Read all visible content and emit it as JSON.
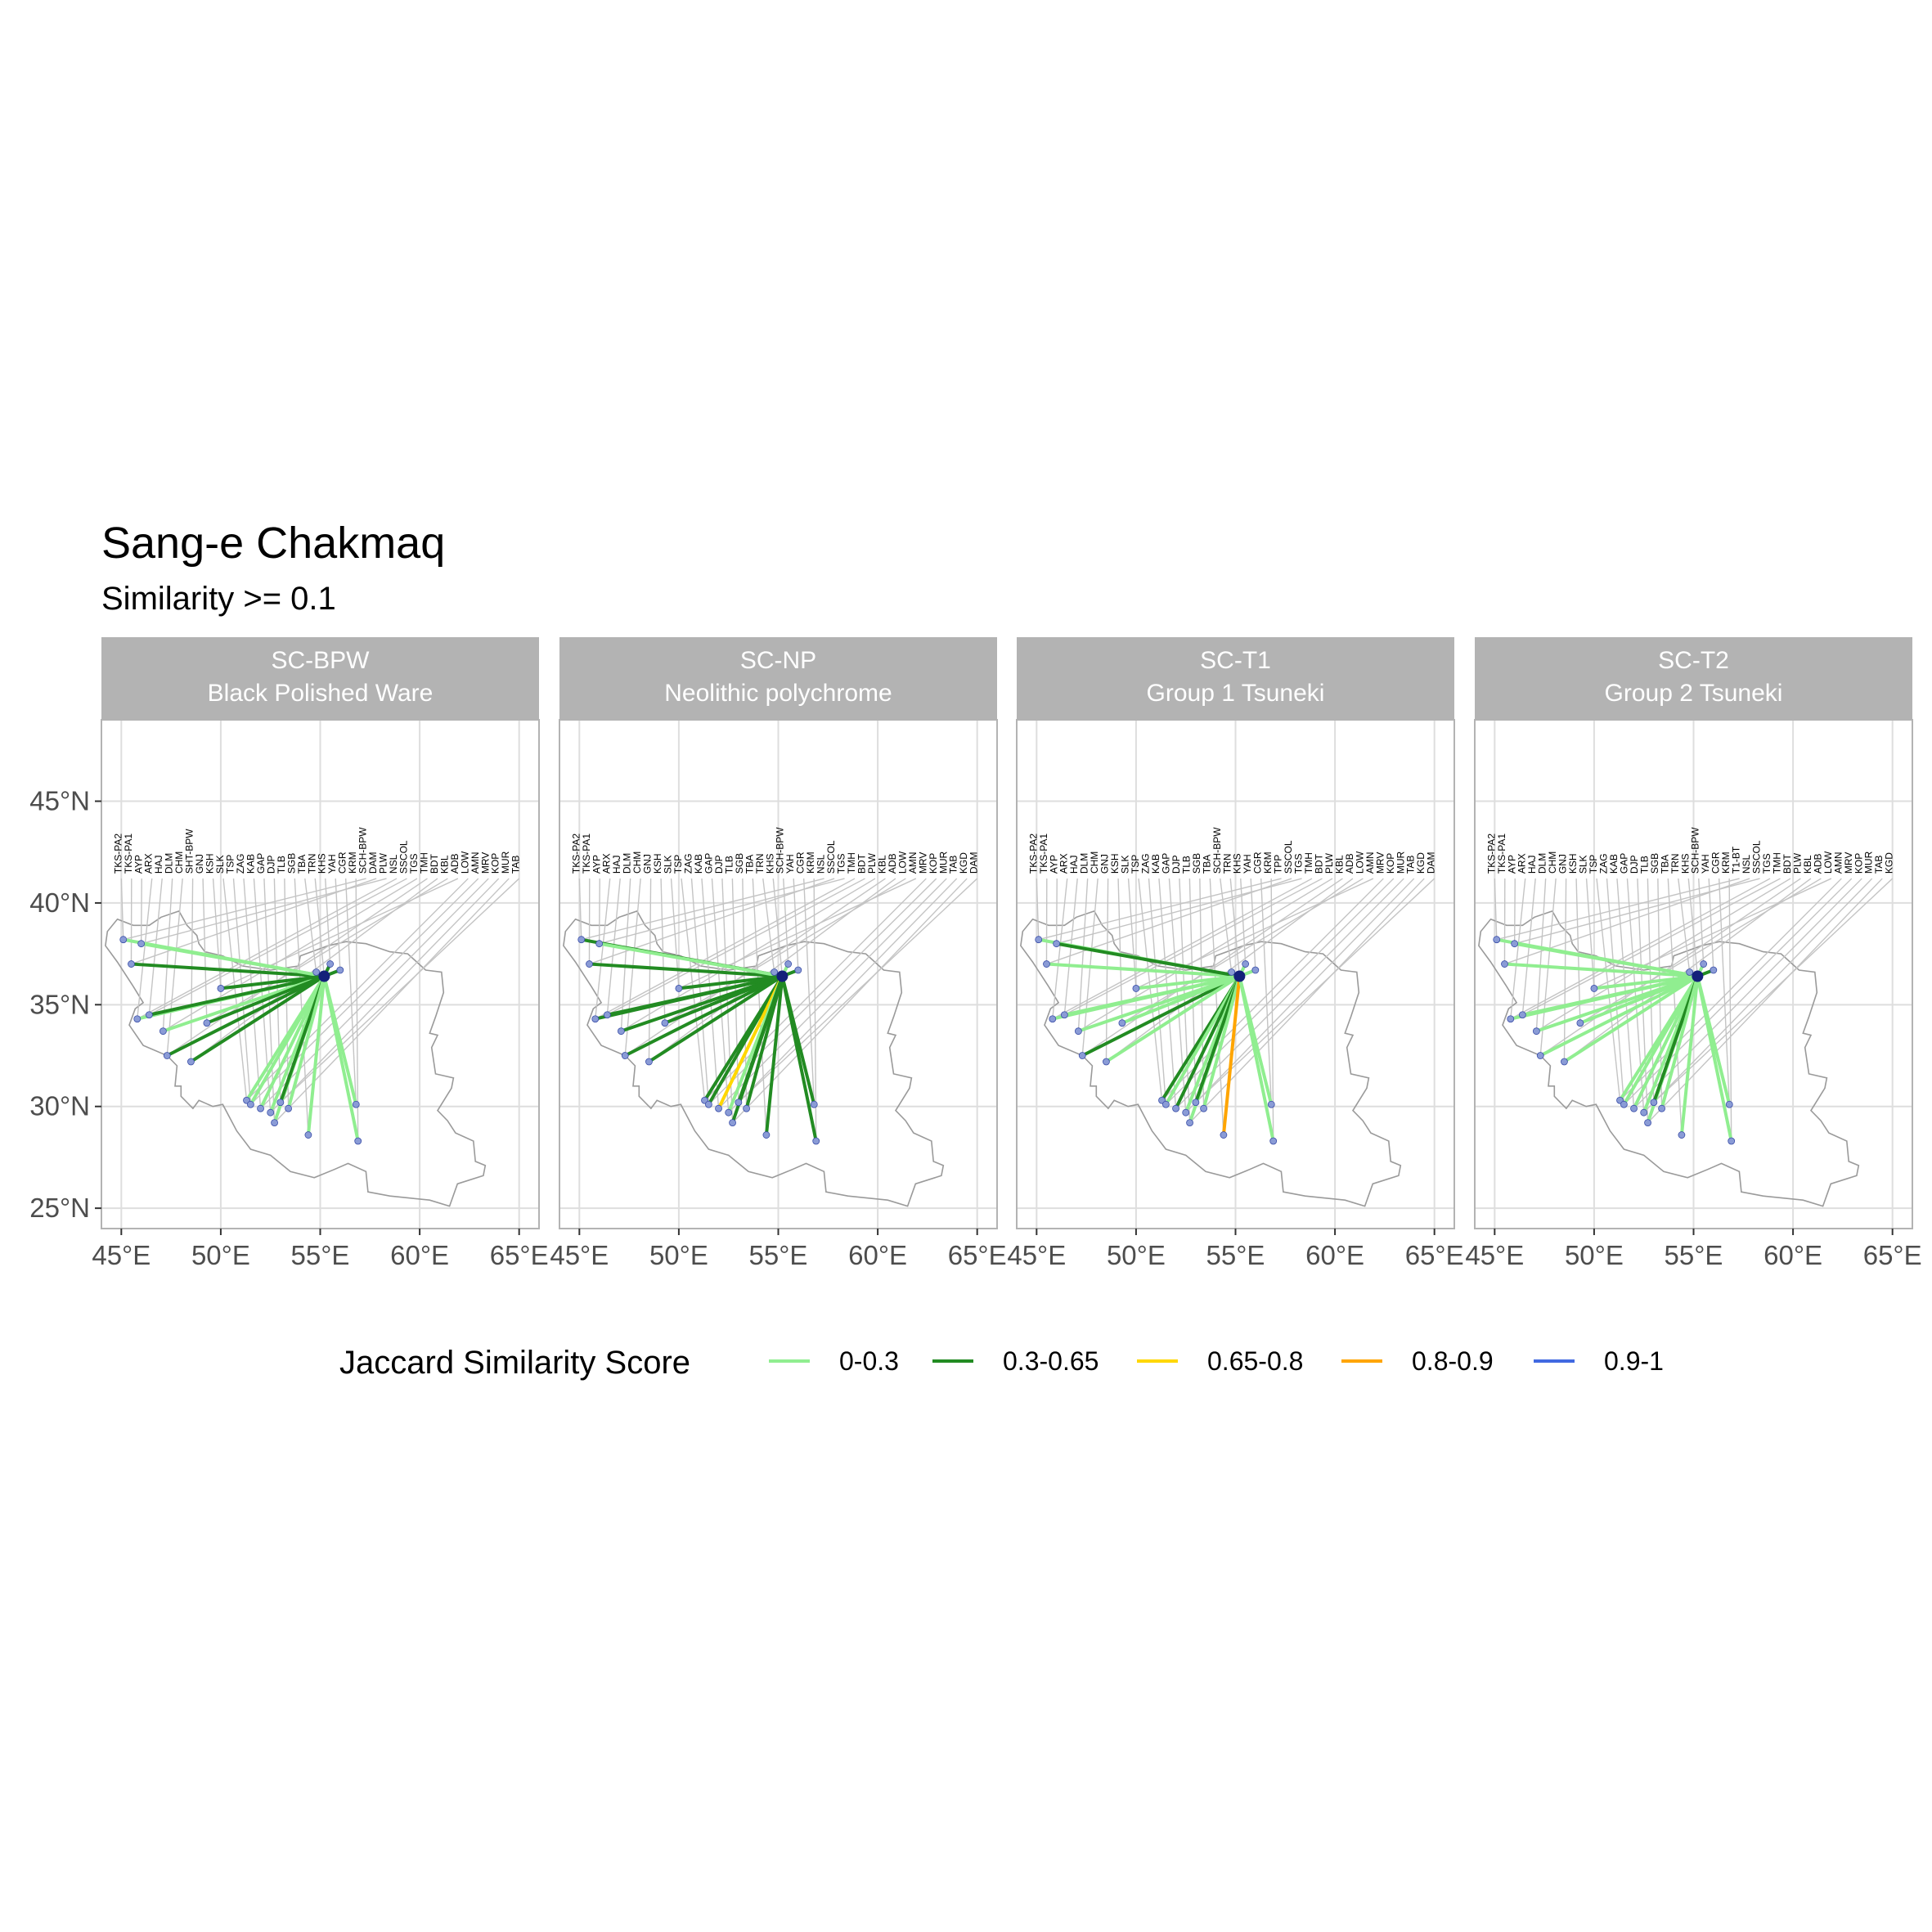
{
  "title": "Sang-e Chakmaq",
  "subtitle": "Similarity >= 0.1",
  "legend": {
    "title": "Jaccard Similarity Score",
    "items": [
      {
        "label": "0-0.3",
        "color": "#90EE90"
      },
      {
        "label": "0.3-0.65",
        "color": "#228B22"
      },
      {
        "label": "0.65-0.8",
        "color": "#FFD700"
      },
      {
        "label": "0.8-0.9",
        "color": "#FFA500"
      },
      {
        "label": "0.9-1",
        "color": "#4169E1"
      }
    ]
  },
  "axis_labels": {
    "x": [
      "45°E",
      "50°E",
      "55°E",
      "60°E",
      "65°E"
    ],
    "y": [
      "45°N",
      "40°N",
      "35°N",
      "30°N",
      "25°N"
    ]
  },
  "chart_data": {
    "type": "map-network",
    "xlim": [
      44,
      66
    ],
    "ylim": [
      24,
      49
    ],
    "x_ticks": [
      45,
      50,
      55,
      60,
      65
    ],
    "y_ticks": [
      25,
      30,
      35,
      40,
      45
    ],
    "grid": true,
    "legend_position": "bottom",
    "label_row_lat": 41.2,
    "source_site": {
      "lon": 55.2,
      "lat": 36.4
    },
    "sites": [
      {
        "lon": 45.1,
        "lat": 38.2
      },
      {
        "lon": 45.5,
        "lat": 37.0
      },
      {
        "lon": 46.0,
        "lat": 38.0
      },
      {
        "lon": 45.8,
        "lat": 34.3
      },
      {
        "lon": 46.4,
        "lat": 34.5
      },
      {
        "lon": 47.1,
        "lat": 33.7
      },
      {
        "lon": 47.3,
        "lat": 32.5
      },
      {
        "lon": 48.5,
        "lat": 32.2
      },
      {
        "lon": 49.3,
        "lat": 34.1
      },
      {
        "lon": 50.0,
        "lat": 35.8
      },
      {
        "lon": 51.3,
        "lat": 30.3
      },
      {
        "lon": 51.5,
        "lat": 30.1
      },
      {
        "lon": 52.0,
        "lat": 29.9
      },
      {
        "lon": 52.5,
        "lat": 29.7
      },
      {
        "lon": 52.7,
        "lat": 29.2
      },
      {
        "lon": 53.0,
        "lat": 30.2
      },
      {
        "lon": 53.4,
        "lat": 29.9
      },
      {
        "lon": 54.4,
        "lat": 28.6
      },
      {
        "lon": 54.8,
        "lat": 36.6
      },
      {
        "lon": 55.2,
        "lat": 36.4
      },
      {
        "lon": 55.5,
        "lat": 37.0
      },
      {
        "lon": 56.0,
        "lat": 36.7
      },
      {
        "lon": 56.8,
        "lat": 30.1
      },
      {
        "lon": 56.9,
        "lat": 28.3
      }
    ],
    "label_count": 40,
    "panels": [
      {
        "strip_line1": "SC-BPW",
        "strip_line2": "Black Polished Ware",
        "site_labels": [
          "TKS-PA2",
          "TKS-PA1",
          "AYP",
          "ARX",
          "HAJ",
          "DLM",
          "CHM",
          "SHT-BPW",
          "GNJ",
          "KSH",
          "SLK",
          "TSP",
          "ZAG",
          "KAB",
          "GAP",
          "DJP",
          "TLB",
          "SGB",
          "TBA",
          "TRN",
          "KHS",
          "YAH",
          "CGR",
          "KRM",
          "SCH-BPW",
          "DAM",
          "PLW",
          "NSL",
          "SSCOL",
          "TGS",
          "TMH",
          "BDT",
          "KBL",
          "ADB",
          "LOW",
          "AMN",
          "MRV",
          "KOP",
          "MUR",
          "TAB"
        ],
        "links": [
          {
            "site": 0,
            "score": "0-0.3"
          },
          {
            "site": 1,
            "score": "0.3-0.65"
          },
          {
            "site": 2,
            "score": "0-0.3"
          },
          {
            "site": 3,
            "score": "0-0.3"
          },
          {
            "site": 4,
            "score": "0.3-0.65"
          },
          {
            "site": 5,
            "score": "0-0.3"
          },
          {
            "site": 6,
            "score": "0.3-0.65"
          },
          {
            "site": 7,
            "score": "0.3-0.65"
          },
          {
            "site": 8,
            "score": "0.3-0.65"
          },
          {
            "site": 9,
            "score": "0.3-0.65"
          },
          {
            "site": 10,
            "score": "0-0.3"
          },
          {
            "site": 11,
            "score": "0-0.3"
          },
          {
            "site": 12,
            "score": "0-0.3"
          },
          {
            "site": 13,
            "score": "0-0.3"
          },
          {
            "site": 14,
            "score": "0-0.3"
          },
          {
            "site": 15,
            "score": "0.3-0.65"
          },
          {
            "site": 16,
            "score": "0-0.3"
          },
          {
            "site": 17,
            "score": "0-0.3"
          },
          {
            "site": 20,
            "score": "0.3-0.65"
          },
          {
            "site": 21,
            "score": "0.3-0.65"
          },
          {
            "site": 22,
            "score": "0-0.3"
          },
          {
            "site": 23,
            "score": "0-0.3"
          }
        ]
      },
      {
        "strip_line1": "SC-NP",
        "strip_line2": "Neolithic polychrome",
        "site_labels": [
          "TKS-PA2",
          "TKS-PA1",
          "AYP",
          "ARX",
          "HAJ",
          "DLM",
          "CHM",
          "GNJ",
          "KSH",
          "SLK",
          "TSP",
          "ZAG",
          "KAB",
          "GAP",
          "DJP",
          "TLB",
          "SGB",
          "TBA",
          "TRN",
          "KHS",
          "SCH-BPW",
          "YAH",
          "CGR",
          "KRM",
          "NSL",
          "SSCOL",
          "TGS",
          "TMH",
          "BDT",
          "PLW",
          "KBL",
          "ADB",
          "LOW",
          "AMN",
          "MRV",
          "KOP",
          "MUR",
          "TAB",
          "KGD",
          "DAM"
        ],
        "links": [
          {
            "site": 0,
            "score": "0.3-0.65"
          },
          {
            "site": 1,
            "score": "0.3-0.65"
          },
          {
            "site": 2,
            "score": "0-0.3"
          },
          {
            "site": 3,
            "score": "0.3-0.65"
          },
          {
            "site": 4,
            "score": "0.3-0.65"
          },
          {
            "site": 5,
            "score": "0.3-0.65"
          },
          {
            "site": 6,
            "score": "0.3-0.65"
          },
          {
            "site": 7,
            "score": "0.3-0.65"
          },
          {
            "site": 8,
            "score": "0.3-0.65"
          },
          {
            "site": 9,
            "score": "0.3-0.65"
          },
          {
            "site": 10,
            "score": "0.3-0.65"
          },
          {
            "site": 11,
            "score": "0.3-0.65"
          },
          {
            "site": 12,
            "score": "0.65-0.8"
          },
          {
            "site": 13,
            "score": "0-0.3"
          },
          {
            "site": 14,
            "score": "0.3-0.65"
          },
          {
            "site": 15,
            "score": "0.3-0.65"
          },
          {
            "site": 16,
            "score": "0.3-0.65"
          },
          {
            "site": 17,
            "score": "0.3-0.65"
          },
          {
            "site": 20,
            "score": "0-0.3"
          },
          {
            "site": 21,
            "score": "0.3-0.65"
          },
          {
            "site": 22,
            "score": "0.3-0.65"
          },
          {
            "site": 23,
            "score": "0.3-0.65"
          }
        ]
      },
      {
        "strip_line1": "SC-T1",
        "strip_line2": "Group 1 Tsuneki",
        "site_labels": [
          "TKS-PA2",
          "TKS-PA1",
          "AYP",
          "ARX",
          "HAJ",
          "DLM",
          "CHM",
          "GNJ",
          "KSH",
          "SLK",
          "TSP",
          "ZAG",
          "KAB",
          "GAP",
          "DJP",
          "TLB",
          "SGB",
          "TBA",
          "SCH-BPW",
          "TRN",
          "KHS",
          "YAH",
          "CGR",
          "KRM",
          "TPP",
          "SSCOL",
          "TGS",
          "TMH",
          "BDT",
          "PLW",
          "KBL",
          "ADB",
          "LOW",
          "AMN",
          "MRV",
          "KOP",
          "MUR",
          "TAB",
          "KGD",
          "DAM"
        ],
        "links": [
          {
            "site": 0,
            "score": "0-0.3"
          },
          {
            "site": 1,
            "score": "0-0.3"
          },
          {
            "site": 2,
            "score": "0.3-0.65"
          },
          {
            "site": 3,
            "score": "0-0.3"
          },
          {
            "site": 4,
            "score": "0-0.3"
          },
          {
            "site": 5,
            "score": "0-0.3"
          },
          {
            "site": 6,
            "score": "0.3-0.65"
          },
          {
            "site": 7,
            "score": "0-0.3"
          },
          {
            "site": 8,
            "score": "0-0.3"
          },
          {
            "site": 9,
            "score": "0-0.3"
          },
          {
            "site": 10,
            "score": "0.3-0.65"
          },
          {
            "site": 11,
            "score": "0-0.3"
          },
          {
            "site": 12,
            "score": "0.3-0.65"
          },
          {
            "site": 13,
            "score": "0-0.3"
          },
          {
            "site": 14,
            "score": "0-0.3"
          },
          {
            "site": 15,
            "score": "0.3-0.65"
          },
          {
            "site": 16,
            "score": "0-0.3"
          },
          {
            "site": 17,
            "score": "0.8-0.9"
          },
          {
            "site": 20,
            "score": "0-0.3"
          },
          {
            "site": 21,
            "score": "0-0.3"
          },
          {
            "site": 22,
            "score": "0-0.3"
          },
          {
            "site": 23,
            "score": "0-0.3"
          }
        ]
      },
      {
        "strip_line1": "SC-T2",
        "strip_line2": "Group 2 Tsuneki",
        "site_labels": [
          "TKS-PA2",
          "TKS-PA1",
          "AYP",
          "ARX",
          "HAJ",
          "DLM",
          "CHM",
          "GNJ",
          "KSH",
          "SLK",
          "TSP",
          "ZAG",
          "KAB",
          "GAP",
          "DJP",
          "TLB",
          "SGB",
          "TBA",
          "TRN",
          "KHS",
          "SCH-BPW",
          "YAH",
          "CGR",
          "KRM",
          "T1-BT",
          "NSL",
          "SSCOL",
          "TGS",
          "TMH",
          "BDT",
          "PLW",
          "KBL",
          "ADB",
          "LOW",
          "AMN",
          "MRV",
          "KOP",
          "MUR",
          "TAB",
          "KGD"
        ],
        "links": [
          {
            "site": 0,
            "score": "0-0.3"
          },
          {
            "site": 1,
            "score": "0-0.3"
          },
          {
            "site": 2,
            "score": "0-0.3"
          },
          {
            "site": 3,
            "score": "0-0.3"
          },
          {
            "site": 4,
            "score": "0-0.3"
          },
          {
            "site": 5,
            "score": "0-0.3"
          },
          {
            "site": 6,
            "score": "0-0.3"
          },
          {
            "site": 7,
            "score": "0-0.3"
          },
          {
            "site": 8,
            "score": "0-0.3"
          },
          {
            "site": 9,
            "score": "0-0.3"
          },
          {
            "site": 10,
            "score": "0-0.3"
          },
          {
            "site": 11,
            "score": "0-0.3"
          },
          {
            "site": 12,
            "score": "0-0.3"
          },
          {
            "site": 13,
            "score": "0-0.3"
          },
          {
            "site": 14,
            "score": "0-0.3"
          },
          {
            "site": 15,
            "score": "0.3-0.65"
          },
          {
            "site": 16,
            "score": "0-0.3"
          },
          {
            "site": 17,
            "score": "0-0.3"
          },
          {
            "site": 20,
            "score": "0-0.3"
          },
          {
            "site": 21,
            "score": "0.3-0.65"
          },
          {
            "site": 22,
            "score": "0-0.3"
          },
          {
            "site": 23,
            "score": "0-0.3"
          }
        ]
      }
    ],
    "outline": [
      [
        44.8,
        39.2
      ],
      [
        45.6,
        38.9
      ],
      [
        46.4,
        38.9
      ],
      [
        47.0,
        39.3
      ],
      [
        47.9,
        39.6
      ],
      [
        48.3,
        38.9
      ],
      [
        48.8,
        38.4
      ],
      [
        48.9,
        38.0
      ],
      [
        49.2,
        37.6
      ],
      [
        50.1,
        37.4
      ],
      [
        51.1,
        36.9
      ],
      [
        52.5,
        36.7
      ],
      [
        53.9,
        36.9
      ],
      [
        54.0,
        37.4
      ],
      [
        55.4,
        37.9
      ],
      [
        56.3,
        38.1
      ],
      [
        57.3,
        38.0
      ],
      [
        58.5,
        37.6
      ],
      [
        59.4,
        37.5
      ],
      [
        60.3,
        36.7
      ],
      [
        61.1,
        36.6
      ],
      [
        61.2,
        35.6
      ],
      [
        60.8,
        34.4
      ],
      [
        60.5,
        33.6
      ],
      [
        60.9,
        33.5
      ],
      [
        60.6,
        32.9
      ],
      [
        60.8,
        31.6
      ],
      [
        61.7,
        31.4
      ],
      [
        61.6,
        30.9
      ],
      [
        60.9,
        29.8
      ],
      [
        61.4,
        29.3
      ],
      [
        61.8,
        28.7
      ],
      [
        62.7,
        28.3
      ],
      [
        62.8,
        27.3
      ],
      [
        63.3,
        27.1
      ],
      [
        63.2,
        26.6
      ],
      [
        61.9,
        26.2
      ],
      [
        61.5,
        25.1
      ],
      [
        60.5,
        25.4
      ],
      [
        59.5,
        25.5
      ],
      [
        58.5,
        25.6
      ],
      [
        57.4,
        25.8
      ],
      [
        57.3,
        26.8
      ],
      [
        56.4,
        27.2
      ],
      [
        55.7,
        26.9
      ],
      [
        54.7,
        26.5
      ],
      [
        53.5,
        26.8
      ],
      [
        52.5,
        27.6
      ],
      [
        51.5,
        27.9
      ],
      [
        50.8,
        28.8
      ],
      [
        50.1,
        30.1
      ],
      [
        49.6,
        30.0
      ],
      [
        48.9,
        30.3
      ],
      [
        48.6,
        29.9
      ],
      [
        48.0,
        30.5
      ],
      [
        48.0,
        31.0
      ],
      [
        47.7,
        31.0
      ],
      [
        47.8,
        32.0
      ],
      [
        47.3,
        32.5
      ],
      [
        46.1,
        33.0
      ],
      [
        45.4,
        34.0
      ],
      [
        45.7,
        34.8
      ],
      [
        46.1,
        35.1
      ],
      [
        45.6,
        35.9
      ],
      [
        44.8,
        37.1
      ],
      [
        44.2,
        37.9
      ],
      [
        44.3,
        38.6
      ],
      [
        44.8,
        39.2
      ]
    ]
  }
}
